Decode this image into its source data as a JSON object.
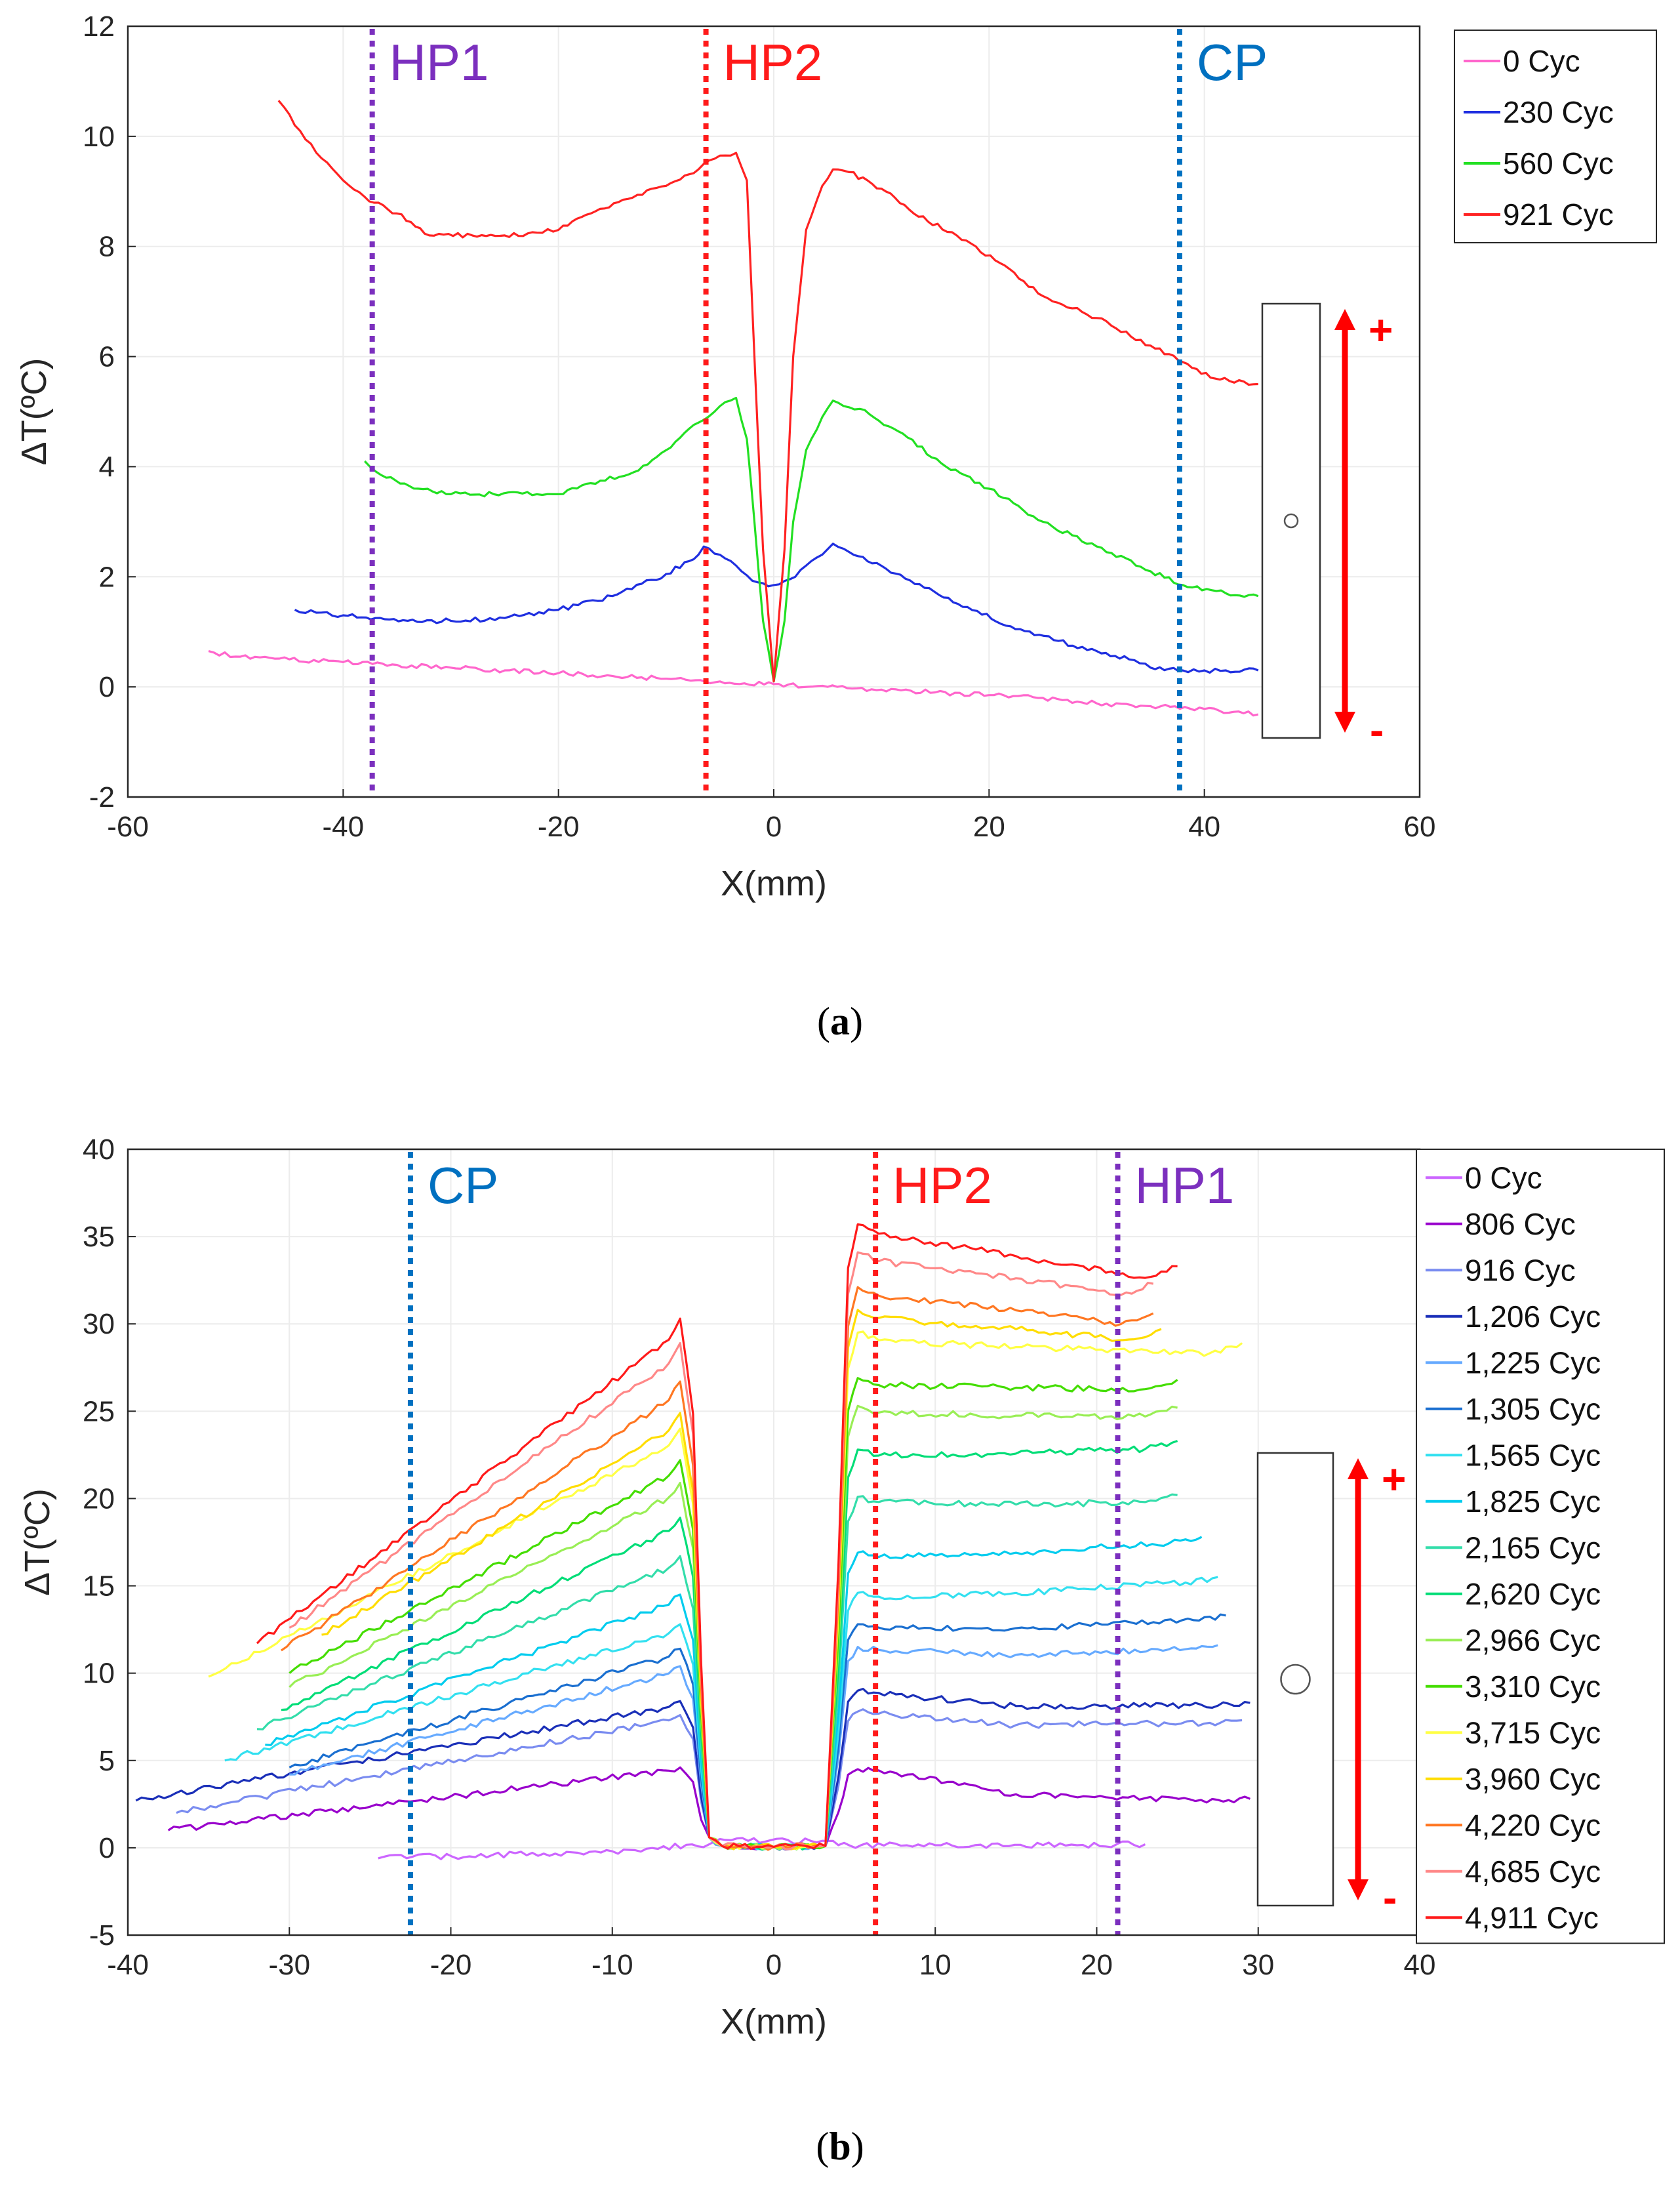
{
  "chart_data": [
    {
      "id": "a",
      "type": "line",
      "caption_open": "(",
      "caption_letter": "a",
      "caption_close": ")",
      "xlabel": "X(mm)",
      "ylabel": "ΔT(ºC)",
      "xlim": [
        -60,
        60
      ],
      "ylim": [
        -2,
        12
      ],
      "xticks": [
        -60,
        -40,
        -20,
        0,
        20,
        40,
        60
      ],
      "yticks": [
        -2,
        0,
        2,
        4,
        6,
        8,
        10,
        12
      ],
      "grid": true,
      "legend_position": "outside-top-right",
      "vlines": [
        {
          "label": "HP1",
          "x": -37.3,
          "color": "#7b2fbe"
        },
        {
          "label": "HP2",
          "x": -6.3,
          "color": "#ff1a1a"
        },
        {
          "label": "CP",
          "x": 37.7,
          "color": "#0070c0"
        }
      ],
      "specimen_inset": {
        "hole": "small",
        "arrow_plus": "+",
        "arrow_minus": "-"
      },
      "series": [
        {
          "name": "0 Cyc",
          "color": "#ff66cc",
          "points": [
            [
              -52.5,
              0.65
            ],
            [
              -50,
              0.55
            ],
            [
              -45,
              0.5
            ],
            [
              -40,
              0.45
            ],
            [
              -35,
              0.4
            ],
            [
              -30,
              0.35
            ],
            [
              -25,
              0.3
            ],
            [
              -20,
              0.25
            ],
            [
              -15,
              0.2
            ],
            [
              -10,
              0.15
            ],
            [
              -5,
              0.1
            ],
            [
              0,
              0.05
            ],
            [
              5,
              0.0
            ],
            [
              10,
              -0.05
            ],
            [
              15,
              -0.1
            ],
            [
              20,
              -0.15
            ],
            [
              25,
              -0.2
            ],
            [
              30,
              -0.3
            ],
            [
              35,
              -0.35
            ],
            [
              40,
              -0.4
            ],
            [
              45,
              -0.5
            ]
          ]
        },
        {
          "name": "230 Cyc",
          "color": "#1f2fe0",
          "points": [
            [
              -44.5,
              1.4
            ],
            [
              -42,
              1.35
            ],
            [
              -40,
              1.3
            ],
            [
              -37,
              1.25
            ],
            [
              -34,
              1.2
            ],
            [
              -30,
              1.2
            ],
            [
              -25,
              1.25
            ],
            [
              -20,
              1.4
            ],
            [
              -15,
              1.65
            ],
            [
              -10,
              2.05
            ],
            [
              -7,
              2.4
            ],
            [
              -6.5,
              2.55
            ],
            [
              -5,
              2.4
            ],
            [
              -3,
              2.1
            ],
            [
              -1.5,
              1.9
            ],
            [
              0,
              1.85
            ],
            [
              2,
              2.0
            ],
            [
              4,
              2.35
            ],
            [
              5.5,
              2.6
            ],
            [
              7,
              2.45
            ],
            [
              10,
              2.2
            ],
            [
              14,
              1.8
            ],
            [
              18,
              1.45
            ],
            [
              22,
              1.1
            ],
            [
              26,
              0.85
            ],
            [
              30,
              0.65
            ],
            [
              33,
              0.5
            ],
            [
              35,
              0.35
            ],
            [
              38,
              0.3
            ],
            [
              40,
              0.3
            ],
            [
              42,
              0.3
            ],
            [
              45,
              0.3
            ]
          ]
        },
        {
          "name": "560 Cyc",
          "color": "#22e022",
          "points": [
            [
              -38,
              4.1
            ],
            [
              -36,
              3.8
            ],
            [
              -33,
              3.6
            ],
            [
              -30,
              3.5
            ],
            [
              -26,
              3.5
            ],
            [
              -22,
              3.5
            ],
            [
              -20,
              3.5
            ],
            [
              -17,
              3.7
            ],
            [
              -13,
              3.9
            ],
            [
              -10,
              4.3
            ],
            [
              -7,
              4.8
            ],
            [
              -5,
              5.1
            ],
            [
              -3.5,
              5.25
            ],
            [
              -2.5,
              4.5
            ],
            [
              -1.8,
              3.0
            ],
            [
              -1,
              1.2
            ],
            [
              0,
              0.1
            ],
            [
              1,
              1.2
            ],
            [
              1.8,
              3.0
            ],
            [
              3,
              4.3
            ],
            [
              4.5,
              4.9
            ],
            [
              5.5,
              5.2
            ],
            [
              8,
              5.05
            ],
            [
              12,
              4.6
            ],
            [
              16,
              4.0
            ],
            [
              20,
              3.6
            ],
            [
              25,
              3.0
            ],
            [
              30,
              2.55
            ],
            [
              35,
              2.1
            ],
            [
              38,
              1.85
            ],
            [
              42,
              1.7
            ],
            [
              45,
              1.65
            ]
          ]
        },
        {
          "name": "921 Cyc",
          "color": "#ff2222",
          "points": [
            [
              -46,
              10.65
            ],
            [
              -44,
              10.1
            ],
            [
              -42,
              9.6
            ],
            [
              -40,
              9.2
            ],
            [
              -38,
              8.9
            ],
            [
              -35,
              8.6
            ],
            [
              -32,
              8.2
            ],
            [
              -28,
              8.2
            ],
            [
              -25,
              8.2
            ],
            [
              -22,
              8.25
            ],
            [
              -20,
              8.3
            ],
            [
              -17,
              8.6
            ],
            [
              -14,
              8.85
            ],
            [
              -10,
              9.1
            ],
            [
              -7,
              9.4
            ],
            [
              -5,
              9.65
            ],
            [
              -3.5,
              9.7
            ],
            [
              -2.5,
              9.2
            ],
            [
              -1.8,
              6.0
            ],
            [
              -1,
              2.5
            ],
            [
              0,
              0.1
            ],
            [
              1,
              2.5
            ],
            [
              1.8,
              6.0
            ],
            [
              3,
              8.3
            ],
            [
              4.5,
              9.1
            ],
            [
              5.5,
              9.4
            ],
            [
              7,
              9.35
            ],
            [
              10,
              9.05
            ],
            [
              13,
              8.6
            ],
            [
              17,
              8.2
            ],
            [
              21,
              7.7
            ],
            [
              25,
              7.1
            ],
            [
              30,
              6.7
            ],
            [
              35,
              6.2
            ],
            [
              38,
              5.9
            ],
            [
              41,
              5.6
            ],
            [
              45,
              5.5
            ]
          ]
        }
      ]
    },
    {
      "id": "b",
      "type": "line",
      "caption_open": "(",
      "caption_letter": "b",
      "caption_close": ")",
      "xlabel": "X(mm)",
      "ylabel": "ΔT(ºC)",
      "xlim": [
        -40,
        40
      ],
      "ylim": [
        -5,
        40
      ],
      "xticks": [
        -40,
        -30,
        -20,
        -10,
        0,
        10,
        20,
        30,
        40
      ],
      "yticks": [
        -5,
        0,
        5,
        10,
        15,
        20,
        25,
        30,
        35,
        40
      ],
      "grid": true,
      "legend_position": "outside-top-right",
      "vlines": [
        {
          "label": "CP",
          "x": -22.5,
          "color": "#0070c0"
        },
        {
          "label": "HP2",
          "x": 6.3,
          "color": "#ff1a1a"
        },
        {
          "label": "HP1",
          "x": 21.3,
          "color": "#7b2fbe"
        }
      ],
      "specimen_inset": {
        "hole": "large",
        "arrow_plus": "+",
        "arrow_minus": "-"
      },
      "series": [
        {
          "name": "0 Cyc",
          "color": "#cc66ff",
          "peak_left": 0.3,
          "x_start": -24.5,
          "edge_left": 0,
          "edge_right": 0,
          "right_start": 0.3,
          "right_end": 0.2,
          "x_end": 23.0
        },
        {
          "name": "806 Cyc",
          "color": "#9900cc",
          "peak_left": 4.6,
          "x_start": -37.5,
          "edge_left": 1.0,
          "edge_right": 2.8,
          "right_start": 4.5,
          "right_end": 2.8,
          "x_end": 29.5
        },
        {
          "name": "916 Cyc",
          "color": "#7a8cf0",
          "peak_left": 7.6,
          "x_start": -37.0,
          "edge_left": 2.0,
          "edge_right": 7.3,
          "right_start": 7.8,
          "right_end": 7.3,
          "x_end": 29.0
        },
        {
          "name": "1,206 Cyc",
          "color": "#1a2fb8",
          "peak_left": 8.4,
          "x_start": -39.5,
          "edge_left": 2.7,
          "edge_right": 8.3,
          "right_start": 9.0,
          "right_end": 8.3,
          "x_end": 29.5
        },
        {
          "name": "1,225 Cyc",
          "color": "#66aaff",
          "peak_left": 10.4,
          "x_start": -30.0,
          "edge_left": 4.2,
          "edge_right": 11.6,
          "right_start": 11.5,
          "right_end": 11.6,
          "x_end": 27.5
        },
        {
          "name": "1,305 Cyc",
          "color": "#1a6fd0",
          "peak_left": 11.4,
          "x_start": -30.0,
          "edge_left": 4.6,
          "edge_right": 13.3,
          "right_start": 12.8,
          "right_end": 13.3,
          "x_end": 28.0
        },
        {
          "name": "1,565 Cyc",
          "color": "#33e0f0",
          "peak_left": 12.8,
          "x_start": -34.0,
          "edge_left": 5.0,
          "edge_right": 15.5,
          "right_start": 14.6,
          "right_end": 15.5,
          "x_end": 27.5
        },
        {
          "name": "1,825 Cyc",
          "color": "#00ccee",
          "peak_left": 14.5,
          "x_start": -31.5,
          "edge_left": 5.9,
          "edge_right": 17.8,
          "right_start": 16.9,
          "right_end": 17.8,
          "x_end": 26.5
        },
        {
          "name": "2,165 Cyc",
          "color": "#33ddaa",
          "peak_left": 16.7,
          "x_start": -32.0,
          "edge_left": 6.8,
          "edge_right": 20.2,
          "right_start": 20.1,
          "right_end": 20.2,
          "x_end": 25.0
        },
        {
          "name": "2,620 Cyc",
          "color": "#00dd77",
          "peak_left": 18.9,
          "x_start": -30.5,
          "edge_left": 7.9,
          "edge_right": 23.3,
          "right_start": 22.8,
          "right_end": 23.3,
          "x_end": 25.0
        },
        {
          "name": "2,966 Cyc",
          "color": "#99ee55",
          "peak_left": 20.9,
          "x_start": -30.0,
          "edge_left": 9.2,
          "edge_right": 25.2,
          "right_start": 25.3,
          "right_end": 25.2,
          "x_end": 25.0
        },
        {
          "name": "3,310 Cyc",
          "color": "#44dd00",
          "peak_left": 22.2,
          "x_start": -30.0,
          "edge_left": 10.0,
          "edge_right": 26.8,
          "right_start": 26.9,
          "right_end": 26.8,
          "x_end": 25.0
        },
        {
          "name": "3,715 Cyc",
          "color": "#ffff44",
          "peak_left": 24.0,
          "x_start": -35.0,
          "edge_left": 9.8,
          "edge_right": 28.9,
          "right_start": 29.5,
          "right_end": 28.9,
          "x_end": 29.0
        },
        {
          "name": "3,960 Cyc",
          "color": "#ffdd00",
          "peak_left": 24.9,
          "x_start": -28.0,
          "edge_left": 12.2,
          "edge_right": 29.7,
          "right_start": 30.8,
          "right_end": 29.7,
          "x_end": 24.0
        },
        {
          "name": "4,220 Cyc",
          "color": "#ff7722",
          "peak_left": 26.7,
          "x_start": -30.5,
          "edge_left": 11.3,
          "edge_right": 30.6,
          "right_start": 32.1,
          "right_end": 30.6,
          "x_end": 23.5
        },
        {
          "name": "4,685 Cyc",
          "color": "#ff8888",
          "peak_left": 28.9,
          "x_start": -30.0,
          "edge_left": 12.6,
          "edge_right": 32.3,
          "right_start": 34.1,
          "right_end": 32.3,
          "x_end": 23.5
        },
        {
          "name": "4,911 Cyc",
          "color": "#ff1a1a",
          "peak_left": 30.3,
          "x_start": -32.0,
          "edge_left": 11.7,
          "edge_right": 33.3,
          "right_start": 35.7,
          "right_end": 33.3,
          "x_end": 25.0
        }
      ]
    }
  ]
}
